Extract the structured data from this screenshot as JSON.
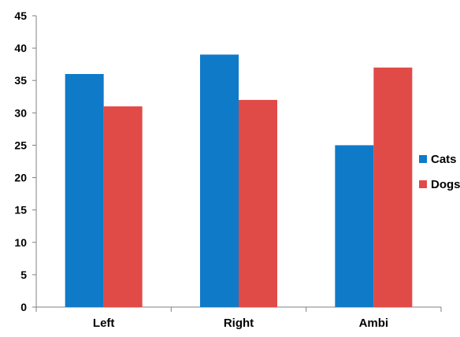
{
  "chart_data": {
    "type": "bar",
    "categories": [
      "Left",
      "Right",
      "Ambi"
    ],
    "series": [
      {
        "name": "Cats",
        "values": [
          36,
          39,
          25
        ],
        "color": "#0F7AC8"
      },
      {
        "name": "Dogs",
        "values": [
          31,
          32,
          37
        ],
        "color": "#E04B47"
      }
    ],
    "ylim": [
      0,
      45
    ],
    "yticks": [
      0,
      5,
      10,
      15,
      20,
      25,
      30,
      35,
      40,
      45
    ],
    "grid": false,
    "legend_position": "right"
  }
}
